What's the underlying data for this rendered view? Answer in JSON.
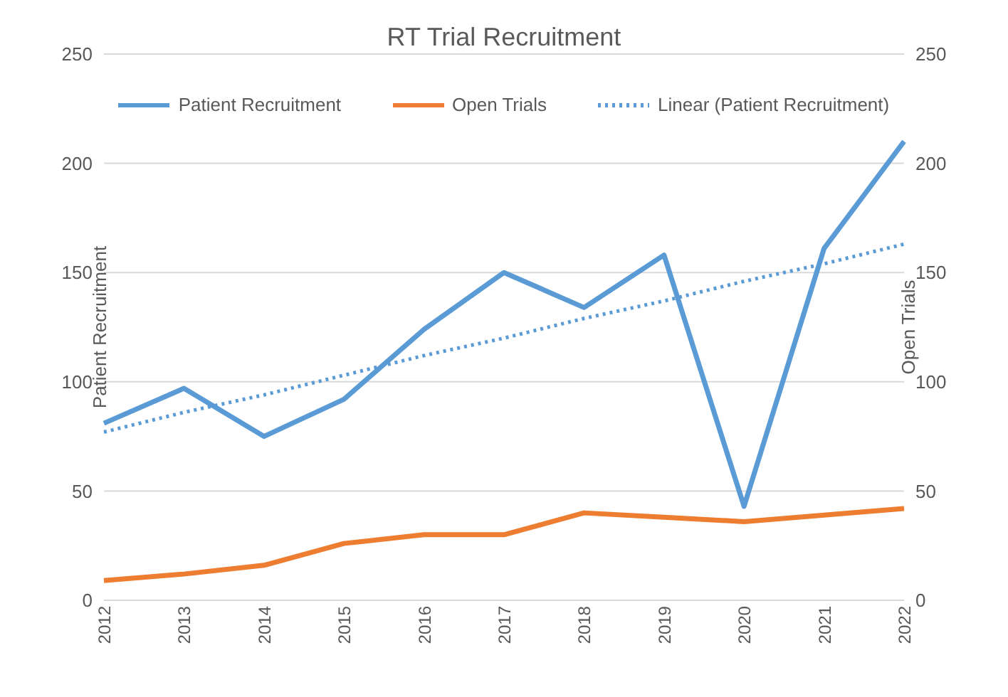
{
  "chart_data": {
    "type": "line",
    "title": "RT Trial Recruitment",
    "ylabel": "Patient Recruitment",
    "y2label": "Open Trials",
    "categories": [
      "2012",
      "2013",
      "2014",
      "2015",
      "2016",
      "2017",
      "2018",
      "2019",
      "2020",
      "2021",
      "2022"
    ],
    "series": [
      {
        "name": "Patient Recruitment",
        "color": "#5b9bd5",
        "values": [
          81,
          97,
          75,
          92,
          124,
          150,
          134,
          158,
          43,
          161,
          210
        ]
      },
      {
        "name": "Open Trials",
        "color": "#ed7d31",
        "axis": "y2",
        "values": [
          9,
          12,
          16,
          26,
          30,
          30,
          40,
          38,
          36,
          39,
          42
        ]
      },
      {
        "name": "Linear (Patient Recruitment)",
        "color": "#5b9bd5",
        "line_style": "dotted",
        "values": [
          77,
          86,
          94,
          103,
          112,
          120,
          129,
          137,
          146,
          154,
          163
        ]
      }
    ],
    "ylim": [
      0,
      250
    ],
    "yticks": [
      0,
      50,
      100,
      150,
      200,
      250
    ],
    "y2lim": [
      0,
      250
    ],
    "y2ticks": [
      0,
      50,
      100,
      150,
      200,
      250
    ],
    "grid": "y",
    "legend": "top",
    "marker": "none",
    "line_style": "solid"
  }
}
